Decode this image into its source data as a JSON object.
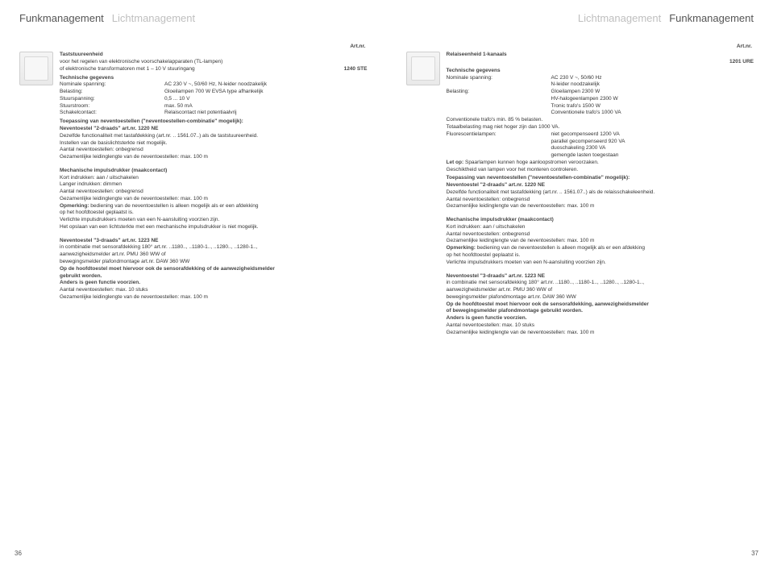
{
  "colors": {
    "headerDark": "#555555",
    "headerLight": "#bfbfbf",
    "text": "#333333",
    "bold": "#444444",
    "bg": "#ffffff",
    "thumbBorder": "#cfcfcf"
  },
  "left": {
    "header": {
      "a": "Funkmanagement",
      "b": "Lichtmanagement"
    },
    "artnr": "Art.nr.",
    "title": "Taststuureenheid",
    "sub1": "voor het regelen van elektronische voorschakelapparaten (TL-lampen)",
    "sub2": "of elektronische transformatoren met 1 – 10 V stuuringang",
    "modelCode": "1240 STE",
    "techHead": "Technische gegevens",
    "specs": [
      {
        "k": "Nominale spanning:",
        "v": "AC 230 V ~, 50/60 Hz, N-leider noodzakelijk"
      },
      {
        "k": "Belasting:",
        "v": "Gloeilampen 700 W EVSA type afhankelijk"
      },
      {
        "k": "Stuurspanning:",
        "v": "0,5 ... 10 V"
      },
      {
        "k": "Stuurstroom:",
        "v": "max. 50 mA"
      },
      {
        "k": "Schakelcontact:",
        "v": "Relaiscontact niet potentiaalvrij"
      }
    ],
    "appHead": "Toepassing van neventoestellen (\"neventoestellen-combinatie\" mogelijk):",
    "nev2Head": "Neventoestel \"2-draads\" art.nr. 1220 NE",
    "nev2a": "Dezelfde functionaliteit met tastafdekking (art.nr. .. 1561.07..) als de taststuureenheid.",
    "nev2b": "Instellen van de basislichtsterkte niet mogelijk.",
    "nev2c": "Aantal neventoestellen: onbegrensd",
    "nev2d": "Gezamenlijke leidinglengte van de neventoestellen: max. 100 m",
    "mechHead": "Mechanische impulsdrukker (maakcontact)",
    "mech1": "Kort indrukken: aan / uitschakelen",
    "mech2": "Langer indrukken: dimmen",
    "mech3": "Aantal neventoestellen: onbegrensd",
    "mech4": "Gezamenlijke leidinglengte van de neventoestellen: max. 100 m",
    "mech5a": "Opmerking:",
    "mech5b": " bediening van de neventoestellen is alleen mogelijk als er een afdekking",
    "mech6": "op het hoofdtoestel geplaatst is.",
    "mech7": "Verlichte impulsdrukkers moeten van een N-aansluiting voorzien zijn.",
    "mech8": "Het opslaan van een lichtsterkte met een mechanische impulsdrukker is niet mogelijk.",
    "nev3Head": "Neventoestel \"3-draads\" art.nr. 1223 NE",
    "nev3a": "in combinatie met sensorafdekking 180° art.nr. ..1180.., ..1180-1.., ..1280.., ..1280-1..,",
    "nev3b": "aanwezigheidsmelder art.nr. PMU 360 WW of",
    "nev3c": "bewegingsmelder plafondmontage art.nr. DAW 360 WW",
    "nev3d": "Op de hoofdtoestel moet hiervoor ook de sensorafdekking of de aanwezigheidsmelder",
    "nev3e": "gebruikt worden.",
    "nev3f": "Anders is geen functie voorzien.",
    "nev3g": "Aantal neventoestellen: max. 10 stuks",
    "nev3h": "Gezamenlijke leidinglengte van de neventoestellen: max. 100 m",
    "pageNum": "36"
  },
  "right": {
    "header": {
      "a": "Lichtmanagement",
      "b": "Funkmanagement"
    },
    "artnr": "Art.nr.",
    "title": "Relaiseenheid 1-kanaals",
    "modelCode": "1201 URE",
    "techHead": "Technische gegevens",
    "specs": [
      {
        "k": "Nominale spanning:",
        "v": "AC 230 V ~, 50/60 Hz"
      },
      {
        "k": "",
        "v": "N-leider noodzakelijk"
      },
      {
        "k": "Belasting:",
        "v": "Gloeilampen 2300 W"
      },
      {
        "k": "",
        "v": "HV-halogeenlampen 2300 W"
      },
      {
        "k": "",
        "v": "Tronic trafo's 1500 W"
      },
      {
        "k": "",
        "v": "Conventionele trafo's 1000 VA"
      }
    ],
    "line1": "Conventionele trafo's min. 85 % belasten.",
    "line2": "Totaalbelasting mag niet hoger zijn dan 1000 VA.",
    "fluor": [
      {
        "k": "Fluorescentielampen:",
        "v": "niet gecompenseerd 1200 VA"
      },
      {
        "k": "",
        "v": "parallel gecompenseerd 920 VA"
      },
      {
        "k": "",
        "v": "duoschakeling 2300 VA"
      },
      {
        "k": "",
        "v": "gemengde lasten toegestaan"
      }
    ],
    "letOpA": "Let op:",
    "letOpB": " Spaarlampen kunnen hoge aanloopstromen veroorzaken.",
    "letOp2": "Geschiktheid van lampen voor het monteren controleren.",
    "appHead": "Toepassing van neventoestellen (\"neventoestellen-combinatie\" mogelijk):",
    "nev2Head": "Neventoestel \"2-draads\" art.nr. 1220 NE",
    "nev2a": "Dezelfde functionaliteit met tastafdekking (art.nr. .. 1561.07..) als de relaisschakeleenheid.",
    "nev2b": "Aantal neventoestellen: onbegrensd",
    "nev2c": "Gezamenlijke leidinglengte van de neventoestellen: max. 100 m",
    "mechHead": "Mechanische impulsdrukker (maakcontact)",
    "mech1": "Kort indrukken: aan / uitschakelen",
    "mech2": "Aantal neventoestellen: onbegrensd",
    "mech3": "Gezamenlijke leidinglengte van de neventoestellen: max. 100 m",
    "mech4a": "Opmerking:",
    "mech4b": " bediening van de neventoestellen is alleen mogelijk als er een afdekking",
    "mech5": "op het hoofdtoestel geplaatst is.",
    "mech6": "Verlichte impulsdrukkers moeten van een N-aansluiting voorzien zijn.",
    "nev3Head": "Neventoestel \"3-draads\" art.nr. 1223 NE",
    "nev3a": "in combinatie met sensorafdekking 180° art.nr. ..1180.., ..1180-1.., ..1280.., ..1280-1..,",
    "nev3b": "aanwezigheidsmelder art.nr. PMU 360 WW of",
    "nev3c": "bewegingsmelder plafondmontage art.nr. DAW 360 WW",
    "nev3d": "Op de hoofdtoestel moet hiervoor ook de sensorafdekking, aanwezigheidsmelder",
    "nev3e": "of bewegingsmelder plafondmontage gebruikt worden.",
    "nev3f": "Anders is geen functie voorzien.",
    "nev3g": "Aantal neventoestellen: max. 10 stuks",
    "nev3h": "Gezamenlijke leidinglengte van de neventoestellen: max. 100 m",
    "pageNum": "37"
  }
}
